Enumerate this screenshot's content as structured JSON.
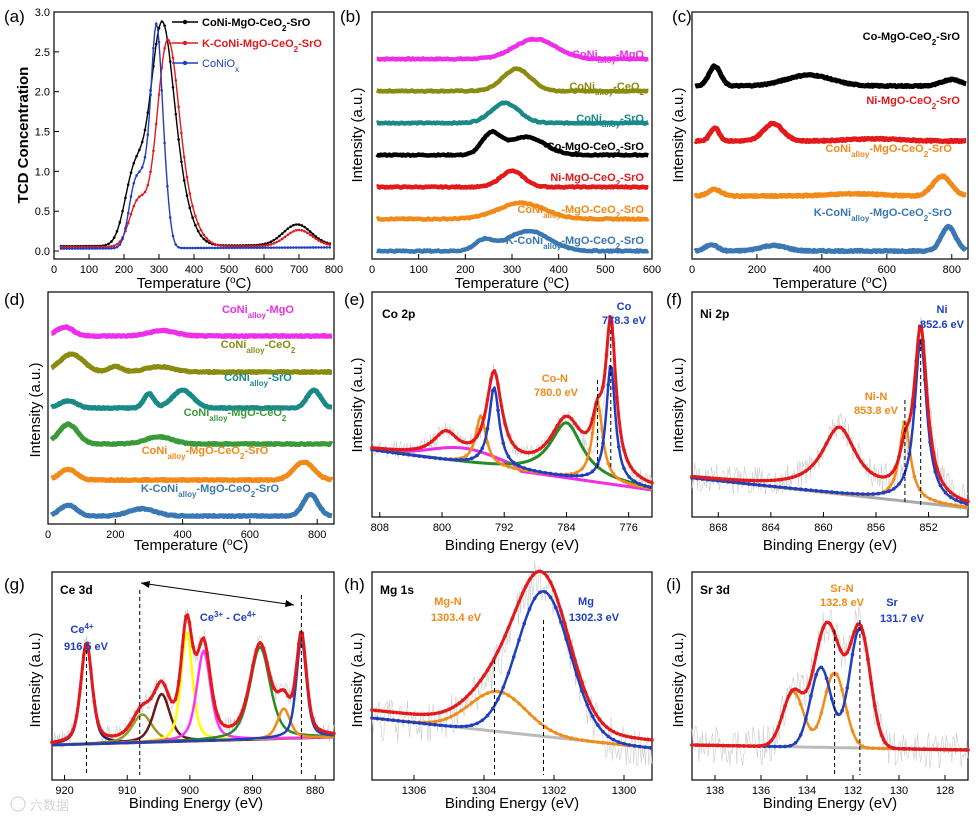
{
  "chart_data": [
    {
      "panel": "(a)",
      "type": "line",
      "xlabel": "Temperature (oC)",
      "ylabel": "TCD Concentration",
      "xlim": [
        0,
        800
      ],
      "ylim": [
        -0.1,
        3.0
      ],
      "xticks": [
        0,
        100,
        200,
        300,
        400,
        500,
        600,
        700,
        800
      ],
      "yticks": [
        0.0,
        0.5,
        1.0,
        1.5,
        2.0,
        2.5,
        3.0
      ],
      "yticklabels": [
        "0.0",
        "0.5",
        "1.0",
        "1.5",
        "2.0",
        "2.5",
        "3.0"
      ],
      "legend": "top-right",
      "series": [
        {
          "name": "CoNi-MgO-CeO2-SrO",
          "color": "#000000",
          "peaks": [
            [
              230,
              0.9,
              28
            ],
            [
              305,
              2.35,
              32
            ],
            [
              345,
              0.7,
              40
            ],
            [
              695,
              0.26,
              40
            ]
          ],
          "base": 0.06
        },
        {
          "name": "K-CoNi-MgO-CeO2-SrO",
          "color": "#e31a1c",
          "peaks": [
            [
              240,
              0.55,
              25
            ],
            [
              322,
              2.2,
              30
            ],
            [
              360,
              0.6,
              40
            ],
            [
              700,
              0.2,
              38
            ]
          ],
          "base": 0.05
        },
        {
          "name": "CoNiOx",
          "color": "#1f3fbf",
          "peaks": [
            [
              230,
              0.7,
              18
            ],
            [
              268,
              0.9,
              20
            ],
            [
              293,
              2.2,
              14
            ],
            [
              315,
              0.7,
              14
            ]
          ],
          "base": 0.03
        }
      ]
    },
    {
      "panel": "(b)",
      "type": "line",
      "xlabel": "Temperature (oC)",
      "ylabel": "Intensity (a.u.)",
      "xlim": [
        0,
        600
      ],
      "xticks": [
        0,
        100,
        200,
        300,
        400,
        500,
        600
      ],
      "series": [
        {
          "name": "CoNialloy-MgO",
          "color": "#ee2ee8",
          "offset": 7,
          "peaks": [
            [
              350,
              1.0,
              45
            ]
          ]
        },
        {
          "name": "CoNialloy-CeO2",
          "color": "#8a8c12",
          "offset": 6,
          "peaks": [
            [
              310,
              1.1,
              30
            ]
          ]
        },
        {
          "name": "CoNialloy-SrO",
          "color": "#1a8a88",
          "offset": 5,
          "peaks": [
            [
              285,
              1.0,
              30
            ]
          ]
        },
        {
          "name": "Co-MgO-CeO2-SrO",
          "color": "#000000",
          "offset": 4,
          "peaks": [
            [
              255,
              1.0,
              20
            ],
            [
              330,
              0.9,
              40
            ]
          ]
        },
        {
          "name": "Ni-MgO-CeO2-SrO",
          "color": "#e31a1c",
          "offset": 3,
          "peaks": [
            [
              300,
              0.8,
              25
            ]
          ]
        },
        {
          "name": "CoNialloy-MgO-CeO2-SrO",
          "color": "#f28a1a",
          "offset": 2,
          "peaks": [
            [
              320,
              0.8,
              50
            ]
          ]
        },
        {
          "name": "K-CoNialloy-MgO-CeO2-SrO",
          "color": "#3a78b4",
          "offset": 1,
          "peaks": [
            [
              240,
              0.5,
              20
            ],
            [
              335,
              1.0,
              45
            ]
          ]
        }
      ]
    },
    {
      "panel": "(c)",
      "type": "line",
      "xlabel": "Temperature (oC)",
      "ylabel": "Intensity (a.u.)",
      "xlim": [
        0,
        850
      ],
      "xticks": [
        0,
        200,
        400,
        600,
        800
      ],
      "series": [
        {
          "name": "Co-MgO-CeO2-SrO",
          "color": "#000000",
          "offset": 4,
          "peaks": [
            [
              70,
              0.9,
              18
            ],
            [
              360,
              0.5,
              70
            ],
            [
              800,
              0.3,
              30
            ]
          ]
        },
        {
          "name": "Ni-MgO-CeO2-SrO",
          "color": "#e31a1c",
          "offset": 3,
          "peaks": [
            [
              70,
              0.6,
              14
            ],
            [
              250,
              0.8,
              30
            ],
            [
              560,
              0.1,
              80
            ]
          ]
        },
        {
          "name": "CoNialloy-MgO-CeO2-SrO",
          "color": "#f28a1a",
          "offset": 2,
          "peaks": [
            [
              70,
              0.3,
              20
            ],
            [
              500,
              0.1,
              80
            ],
            [
              770,
              0.9,
              28
            ]
          ]
        },
        {
          "name": "K-CoNialloy-MgO-CeO2-SrO",
          "color": "#3a78b4",
          "offset": 1,
          "peaks": [
            [
              60,
              0.3,
              18
            ],
            [
              250,
              0.25,
              40
            ],
            [
              790,
              1.1,
              22
            ]
          ]
        }
      ]
    },
    {
      "panel": "(d)",
      "type": "line",
      "xlabel": "Temperature (oC)",
      "ylabel": "Intensity (a.u.)",
      "xlim": [
        0,
        850
      ],
      "xticks": [
        0,
        200,
        400,
        600,
        800
      ],
      "series": [
        {
          "name": "CoNialloy-MgO",
          "color": "#ee2ee8",
          "offset": 6,
          "peaks": [
            [
              50,
              0.5,
              25
            ],
            [
              340,
              0.3,
              40
            ]
          ]
        },
        {
          "name": "CoNialloy-CeO2",
          "color": "#8a8c12",
          "offset": 5,
          "peaks": [
            [
              70,
              1.0,
              35
            ],
            [
              200,
              0.3,
              20
            ],
            [
              330,
              0.3,
              40
            ]
          ]
        },
        {
          "name": "CoNialloy-SrO",
          "color": "#1a8a88",
          "offset": 4,
          "peaks": [
            [
              60,
              0.4,
              25
            ],
            [
              300,
              0.8,
              15
            ],
            [
              400,
              1.0,
              30
            ],
            [
              790,
              1.0,
              20
            ]
          ]
        },
        {
          "name": "CoNialloy-MgO-CeO2",
          "color": "#3a9a3a",
          "offset": 3,
          "peaks": [
            [
              60,
              1.1,
              28
            ],
            [
              330,
              0.4,
              40
            ]
          ]
        },
        {
          "name": "CoNialloy-MgO-CeO2-SrO",
          "color": "#f28a1a",
          "offset": 2,
          "peaks": [
            [
              60,
              0.6,
              25
            ],
            [
              760,
              1.0,
              30
            ]
          ]
        },
        {
          "name": "K-CoNialloy-MgO-CeO2-SrO",
          "color": "#3a78b4",
          "offset": 1,
          "peaks": [
            [
              60,
              0.6,
              25
            ],
            [
              280,
              0.4,
              40
            ],
            [
              780,
              1.2,
              22
            ]
          ]
        }
      ]
    },
    {
      "panel": "(e)",
      "type": "line",
      "core_level": "Co 2p",
      "xlabel": "Binding Energy (eV)",
      "ylabel": "Intensity (a.u.)",
      "xlim": [
        809,
        773
      ],
      "xticks": [
        808,
        800,
        792,
        784,
        776
      ],
      "peak_annotations": [
        {
          "label": "Co",
          "energy": "778.3 eV",
          "x": 778.3,
          "color": "#1f3fbf"
        },
        {
          "label": "Co-N",
          "energy": "780.0 eV",
          "x": 780.0,
          "color": "#f28a1a"
        }
      ]
    },
    {
      "panel": "(f)",
      "type": "line",
      "core_level": "Ni 2p",
      "xlabel": "Binding Energy (eV)",
      "ylabel": "Intensity (a.u.)",
      "xlim": [
        870,
        849
      ],
      "xticks": [
        868,
        864,
        860,
        856,
        852
      ],
      "peak_annotations": [
        {
          "label": "Ni",
          "energy": "852.6 eV",
          "x": 852.6,
          "color": "#1f3fbf"
        },
        {
          "label": "Ni-N",
          "energy": "853.8 eV",
          "x": 853.8,
          "color": "#f28a1a"
        }
      ]
    },
    {
      "panel": "(g)",
      "type": "line",
      "core_level": "Ce 3d",
      "xlabel": "Binding Energy (eV)",
      "ylabel": "Intensity (a.u.)",
      "xlim": [
        922,
        877
      ],
      "xticks": [
        920,
        910,
        900,
        890,
        880
      ],
      "peak_annotations": [
        {
          "label": "Ce4+",
          "energy": "916.5 eV",
          "x": 916.5,
          "color": "#1f3fbf"
        },
        {
          "label": "Ce3+ - Ce4+",
          "energy": "",
          "x": 895,
          "color": "#1f3fbf"
        }
      ]
    },
    {
      "panel": "(h)",
      "type": "line",
      "core_level": "Mg 1s",
      "xlabel": "Binding Energy (eV)",
      "ylabel": "Intensity (a.u.)",
      "xlim": [
        1307.2,
        1299.2
      ],
      "xticks": [
        1306,
        1304,
        1302,
        1300
      ],
      "peak_annotations": [
        {
          "label": "Mg",
          "energy": "1302.3 eV",
          "x": 1302.3,
          "color": "#1f3fbf"
        },
        {
          "label": "Mg-N",
          "energy": "1303.4 eV",
          "x": 1303.4,
          "color": "#f28a1a"
        }
      ]
    },
    {
      "panel": "(i)",
      "type": "line",
      "core_level": "Sr 3d",
      "xlabel": "Binding Energy (eV)",
      "ylabel": "Intensity (a.u.)",
      "xlim": [
        139,
        127
      ],
      "xticks": [
        138,
        136,
        134,
        132,
        130,
        128
      ],
      "peak_annotations": [
        {
          "label": "Sr",
          "energy": "131.7 eV",
          "x": 131.7,
          "color": "#1f3fbf"
        },
        {
          "label": "Sr-N",
          "energy": "132.8 eV",
          "x": 132.8,
          "color": "#f28a1a"
        }
      ]
    }
  ],
  "watermark": "六数据",
  "colors": {
    "black": "#000000",
    "red": "#e31a1c",
    "blue": "#1f3fbf",
    "orange": "#f28a1a"
  }
}
